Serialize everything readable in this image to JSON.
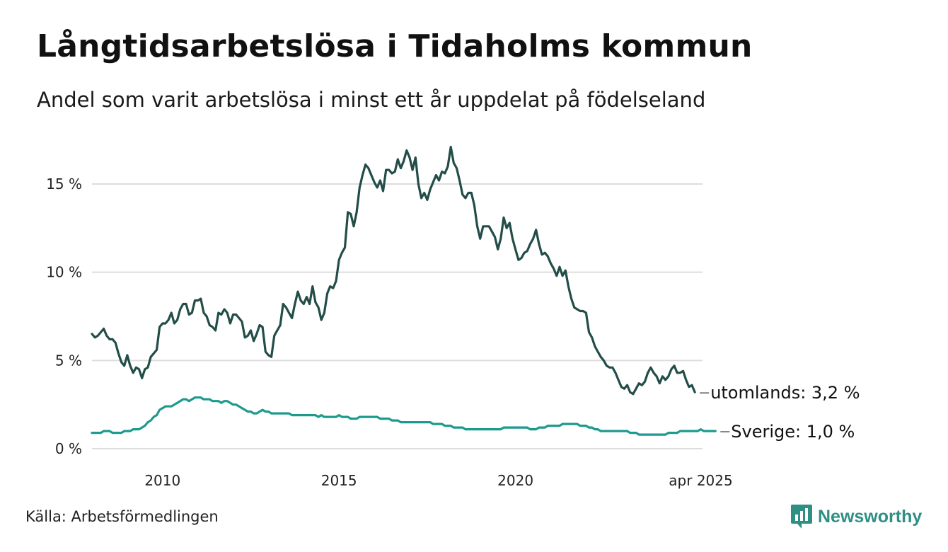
{
  "header": {
    "title": "Långtidsarbetslösa i Tidaholms kommun",
    "subtitle": "Andel som varit arbetslösa i minst ett år uppdelat på födelseland"
  },
  "footer": {
    "source": "Källa: Arbetsförmedlingen",
    "brand": "Newsworthy"
  },
  "chart_data": {
    "type": "line",
    "x_start": "2008-01",
    "x_step": "month",
    "xlim": [
      2008.0,
      2025.3
    ],
    "ylim": [
      0,
      17.5
    ],
    "x_ticks": [
      {
        "value": 2010,
        "label": "2010"
      },
      {
        "value": 2015,
        "label": "2015"
      },
      {
        "value": 2020,
        "label": "2020"
      },
      {
        "value": 2025.25,
        "label": "apr 2025"
      }
    ],
    "y_ticks": [
      {
        "value": 0,
        "label": "0 %"
      },
      {
        "value": 5,
        "label": "5 %"
      },
      {
        "value": 10,
        "label": "10 %"
      },
      {
        "value": 15,
        "label": "15 %"
      }
    ],
    "grid": true,
    "legend": "end-labels",
    "series": [
      {
        "name": "utomlands",
        "end_label": "utomlands: 3,2 %",
        "color": "#234d48",
        "values": [
          6.5,
          6.3,
          6.4,
          6.6,
          6.8,
          6.4,
          6.2,
          6.2,
          6.0,
          5.4,
          4.9,
          4.7,
          5.3,
          4.7,
          4.3,
          4.6,
          4.5,
          4.0,
          4.5,
          4.6,
          5.2,
          5.4,
          5.6,
          6.9,
          7.1,
          7.1,
          7.3,
          7.7,
          7.1,
          7.3,
          7.9,
          8.2,
          8.2,
          7.6,
          7.7,
          8.4,
          8.4,
          8.5,
          7.7,
          7.5,
          7.0,
          6.9,
          6.7,
          7.7,
          7.6,
          7.9,
          7.7,
          7.1,
          7.6,
          7.6,
          7.4,
          7.2,
          6.3,
          6.4,
          6.7,
          6.1,
          6.5,
          7.0,
          6.9,
          5.5,
          5.3,
          5.2,
          6.4,
          6.7,
          7.0,
          8.2,
          8.0,
          7.7,
          7.4,
          8.2,
          8.9,
          8.4,
          8.2,
          8.6,
          8.2,
          9.2,
          8.3,
          8.0,
          7.3,
          7.7,
          8.8,
          9.2,
          9.1,
          9.5,
          10.7,
          11.1,
          11.4,
          13.4,
          13.3,
          12.6,
          13.4,
          14.8,
          15.5,
          16.1,
          15.9,
          15.5,
          15.1,
          14.8,
          15.2,
          14.6,
          15.8,
          15.8,
          15.6,
          15.7,
          16.4,
          15.9,
          16.3,
          16.9,
          16.5,
          15.8,
          16.5,
          15.0,
          14.2,
          14.5,
          14.1,
          14.7,
          15.1,
          15.5,
          15.2,
          15.7,
          15.6,
          16.0,
          17.1,
          16.2,
          15.9,
          15.2,
          14.4,
          14.2,
          14.5,
          14.5,
          13.8,
          12.6,
          11.9,
          12.6,
          12.6,
          12.6,
          12.3,
          12.0,
          11.3,
          11.9,
          13.1,
          12.5,
          12.8,
          11.9,
          11.3,
          10.7,
          10.8,
          11.1,
          11.2,
          11.6,
          11.9,
          12.4,
          11.6,
          11.0,
          11.1,
          10.9,
          10.5,
          10.2,
          9.8,
          10.3,
          9.8,
          10.1,
          9.2,
          8.5,
          8.0,
          7.9,
          7.8,
          7.8,
          7.7,
          6.6,
          6.3,
          5.8,
          5.5,
          5.2,
          5.0,
          4.7,
          4.6,
          4.6,
          4.3,
          3.9,
          3.5,
          3.4,
          3.6,
          3.2,
          3.1,
          3.4,
          3.7,
          3.6,
          3.8,
          4.3,
          4.6,
          4.3,
          4.1,
          3.7,
          4.1,
          3.9,
          4.1,
          4.5,
          4.7,
          4.3,
          4.3,
          4.4,
          3.9,
          3.5,
          3.6,
          3.2
        ]
      },
      {
        "name": "Sverige",
        "end_label": "Sverige: 1,0 %",
        "color": "#1d9a8d",
        "values": [
          0.9,
          0.9,
          0.9,
          0.9,
          1.0,
          1.0,
          1.0,
          0.9,
          0.9,
          0.9,
          0.9,
          1.0,
          1.0,
          1.0,
          1.1,
          1.1,
          1.1,
          1.2,
          1.3,
          1.5,
          1.6,
          1.8,
          1.9,
          2.2,
          2.3,
          2.4,
          2.4,
          2.4,
          2.5,
          2.6,
          2.7,
          2.8,
          2.8,
          2.7,
          2.8,
          2.9,
          2.9,
          2.9,
          2.8,
          2.8,
          2.8,
          2.7,
          2.7,
          2.7,
          2.6,
          2.7,
          2.7,
          2.6,
          2.5,
          2.5,
          2.4,
          2.3,
          2.2,
          2.1,
          2.1,
          2.0,
          2.0,
          2.1,
          2.2,
          2.1,
          2.1,
          2.0,
          2.0,
          2.0,
          2.0,
          2.0,
          2.0,
          2.0,
          1.9,
          1.9,
          1.9,
          1.9,
          1.9,
          1.9,
          1.9,
          1.9,
          1.9,
          1.8,
          1.9,
          1.8,
          1.8,
          1.8,
          1.8,
          1.8,
          1.9,
          1.8,
          1.8,
          1.8,
          1.7,
          1.7,
          1.7,
          1.8,
          1.8,
          1.8,
          1.8,
          1.8,
          1.8,
          1.8,
          1.7,
          1.7,
          1.7,
          1.7,
          1.6,
          1.6,
          1.6,
          1.5,
          1.5,
          1.5,
          1.5,
          1.5,
          1.5,
          1.5,
          1.5,
          1.5,
          1.5,
          1.5,
          1.4,
          1.4,
          1.4,
          1.4,
          1.3,
          1.3,
          1.3,
          1.2,
          1.2,
          1.2,
          1.2,
          1.1,
          1.1,
          1.1,
          1.1,
          1.1,
          1.1,
          1.1,
          1.1,
          1.1,
          1.1,
          1.1,
          1.1,
          1.1,
          1.2,
          1.2,
          1.2,
          1.2,
          1.2,
          1.2,
          1.2,
          1.2,
          1.2,
          1.1,
          1.1,
          1.1,
          1.2,
          1.2,
          1.2,
          1.3,
          1.3,
          1.3,
          1.3,
          1.3,
          1.4,
          1.4,
          1.4,
          1.4,
          1.4,
          1.4,
          1.3,
          1.3,
          1.3,
          1.2,
          1.2,
          1.1,
          1.1,
          1.0,
          1.0,
          1.0,
          1.0,
          1.0,
          1.0,
          1.0,
          1.0,
          1.0,
          1.0,
          0.9,
          0.9,
          0.9,
          0.8,
          0.8,
          0.8,
          0.8,
          0.8,
          0.8,
          0.8,
          0.8,
          0.8,
          0.8,
          0.9,
          0.9,
          0.9,
          0.9,
          1.0,
          1.0,
          1.0,
          1.0,
          1.0,
          1.0,
          1.0,
          1.1,
          1.0,
          1.0,
          1.0,
          1.0,
          1.0
        ]
      }
    ]
  }
}
